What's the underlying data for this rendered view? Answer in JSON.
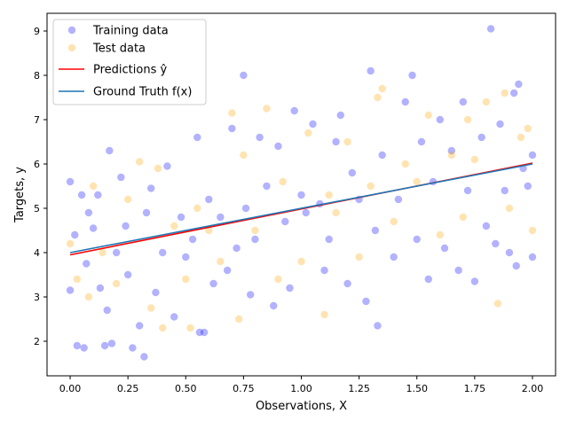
{
  "chart_data": {
    "type": "scatter",
    "title": "",
    "xlabel": "Observations, X",
    "ylabel": "Targets, y",
    "xlim": [
      -0.1,
      2.1
    ],
    "ylim": [
      1.22,
      9.4
    ],
    "xticks": [
      0.0,
      0.25,
      0.5,
      0.75,
      1.0,
      1.25,
      1.5,
      1.75,
      2.0
    ],
    "xtick_labels": [
      "0.00",
      "0.25",
      "0.50",
      "0.75",
      "1.00",
      "1.25",
      "1.50",
      "1.75",
      "2.00"
    ],
    "yticks": [
      2,
      3,
      4,
      5,
      6,
      7,
      8,
      9
    ],
    "ytick_labels": [
      "2",
      "3",
      "4",
      "5",
      "6",
      "7",
      "8",
      "9"
    ],
    "grid": false,
    "legend_position": "top-left",
    "series": [
      {
        "name": "Training data",
        "kind": "scatter",
        "color": "#0000ff",
        "alpha": 0.3,
        "points": [
          [
            0.0,
            3.15
          ],
          [
            0.0,
            5.6
          ],
          [
            0.02,
            4.4
          ],
          [
            0.03,
            1.9
          ],
          [
            0.05,
            5.3
          ],
          [
            0.06,
            1.85
          ],
          [
            0.07,
            3.75
          ],
          [
            0.08,
            4.9
          ],
          [
            0.1,
            4.55
          ],
          [
            0.12,
            5.3
          ],
          [
            0.13,
            3.2
          ],
          [
            0.15,
            1.9
          ],
          [
            0.16,
            2.7
          ],
          [
            0.17,
            6.3
          ],
          [
            0.18,
            1.95
          ],
          [
            0.2,
            4.0
          ],
          [
            0.22,
            5.7
          ],
          [
            0.24,
            4.6
          ],
          [
            0.25,
            3.5
          ],
          [
            0.27,
            1.85
          ],
          [
            0.3,
            2.35
          ],
          [
            0.32,
            1.65
          ],
          [
            0.33,
            4.9
          ],
          [
            0.35,
            5.45
          ],
          [
            0.37,
            3.1
          ],
          [
            0.4,
            4.0
          ],
          [
            0.42,
            5.95
          ],
          [
            0.45,
            2.55
          ],
          [
            0.48,
            4.8
          ],
          [
            0.5,
            3.9
          ],
          [
            0.53,
            4.3
          ],
          [
            0.55,
            6.6
          ],
          [
            0.56,
            2.2
          ],
          [
            0.58,
            2.2
          ],
          [
            0.6,
            5.2
          ],
          [
            0.62,
            3.3
          ],
          [
            0.65,
            4.8
          ],
          [
            0.68,
            3.6
          ],
          [
            0.7,
            6.8
          ],
          [
            0.72,
            4.1
          ],
          [
            0.75,
            8.0
          ],
          [
            0.76,
            5.0
          ],
          [
            0.78,
            3.05
          ],
          [
            0.8,
            4.3
          ],
          [
            0.82,
            6.6
          ],
          [
            0.85,
            5.5
          ],
          [
            0.88,
            2.8
          ],
          [
            0.9,
            6.4
          ],
          [
            0.93,
            4.7
          ],
          [
            0.95,
            3.2
          ],
          [
            0.97,
            7.2
          ],
          [
            1.0,
            5.3
          ],
          [
            1.02,
            4.9
          ],
          [
            1.05,
            6.9
          ],
          [
            1.08,
            5.1
          ],
          [
            1.1,
            3.6
          ],
          [
            1.12,
            4.3
          ],
          [
            1.15,
            6.5
          ],
          [
            1.17,
            7.1
          ],
          [
            1.2,
            3.3
          ],
          [
            1.22,
            5.8
          ],
          [
            1.25,
            5.2
          ],
          [
            1.28,
            2.9
          ],
          [
            1.3,
            8.1
          ],
          [
            1.32,
            4.5
          ],
          [
            1.33,
            2.35
          ],
          [
            1.35,
            6.2
          ],
          [
            1.4,
            3.9
          ],
          [
            1.42,
            5.2
          ],
          [
            1.45,
            7.4
          ],
          [
            1.48,
            8.0
          ],
          [
            1.5,
            4.3
          ],
          [
            1.52,
            6.5
          ],
          [
            1.55,
            3.4
          ],
          [
            1.57,
            5.6
          ],
          [
            1.6,
            7.0
          ],
          [
            1.62,
            4.1
          ],
          [
            1.65,
            6.3
          ],
          [
            1.68,
            3.6
          ],
          [
            1.7,
            7.4
          ],
          [
            1.72,
            5.4
          ],
          [
            1.75,
            3.35
          ],
          [
            1.78,
            6.6
          ],
          [
            1.8,
            4.6
          ],
          [
            1.82,
            9.05
          ],
          [
            1.84,
            4.2
          ],
          [
            1.86,
            6.9
          ],
          [
            1.88,
            5.4
          ],
          [
            1.9,
            4.0
          ],
          [
            1.92,
            7.6
          ],
          [
            1.94,
            7.8
          ],
          [
            1.96,
            5.9
          ],
          [
            1.98,
            5.5
          ],
          [
            2.0,
            6.2
          ],
          [
            2.0,
            3.9
          ],
          [
            1.93,
            3.7
          ]
        ]
      },
      {
        "name": "Test data",
        "kind": "scatter",
        "color": "#ffa500",
        "alpha": 0.3,
        "points": [
          [
            0.0,
            4.2
          ],
          [
            0.03,
            3.4
          ],
          [
            0.08,
            3.0
          ],
          [
            0.1,
            5.5
          ],
          [
            0.14,
            4.0
          ],
          [
            0.2,
            3.3
          ],
          [
            0.25,
            5.2
          ],
          [
            0.3,
            6.05
          ],
          [
            0.35,
            2.75
          ],
          [
            0.38,
            5.9
          ],
          [
            0.4,
            2.3
          ],
          [
            0.45,
            4.6
          ],
          [
            0.5,
            3.4
          ],
          [
            0.52,
            2.3
          ],
          [
            0.55,
            5.0
          ],
          [
            0.6,
            4.5
          ],
          [
            0.65,
            3.8
          ],
          [
            0.7,
            7.15
          ],
          [
            0.73,
            2.5
          ],
          [
            0.75,
            6.2
          ],
          [
            0.8,
            4.5
          ],
          [
            0.85,
            7.25
          ],
          [
            0.9,
            3.4
          ],
          [
            0.92,
            5.6
          ],
          [
            1.0,
            3.8
          ],
          [
            1.03,
            6.7
          ],
          [
            1.1,
            2.6
          ],
          [
            1.15,
            4.9
          ],
          [
            1.2,
            6.5
          ],
          [
            1.25,
            3.9
          ],
          [
            1.3,
            5.5
          ],
          [
            1.33,
            7.5
          ],
          [
            1.35,
            7.7
          ],
          [
            1.4,
            4.7
          ],
          [
            1.45,
            6.0
          ],
          [
            1.5,
            5.6
          ],
          [
            1.55,
            7.1
          ],
          [
            1.6,
            4.4
          ],
          [
            1.65,
            6.2
          ],
          [
            1.7,
            4.8
          ],
          [
            1.72,
            7.0
          ],
          [
            1.75,
            6.1
          ],
          [
            1.8,
            7.4
          ],
          [
            1.85,
            2.85
          ],
          [
            1.88,
            7.6
          ],
          [
            1.9,
            5.0
          ],
          [
            1.95,
            6.6
          ],
          [
            2.0,
            4.5
          ],
          [
            1.98,
            6.8
          ],
          [
            1.12,
            5.3
          ]
        ]
      },
      {
        "name": "Predictions ŷ",
        "kind": "line",
        "color": "#ff0000",
        "points": [
          [
            0.0,
            3.95
          ],
          [
            2.0,
            6.02
          ]
        ]
      },
      {
        "name": "Ground Truth f(x)",
        "kind": "line",
        "color": "#1f77b4",
        "points": [
          [
            0.0,
            4.0
          ],
          [
            2.0,
            6.0
          ]
        ]
      }
    ],
    "legend": [
      {
        "label": "Training data",
        "marker": "dot",
        "color": "#0000ff"
      },
      {
        "label": "Test data",
        "marker": "dot",
        "color": "#ffa500"
      },
      {
        "label": "Predictions ŷ",
        "marker": "line",
        "color": "#ff0000"
      },
      {
        "label": "Ground Truth f(x)",
        "marker": "line",
        "color": "#1f77b4"
      }
    ]
  }
}
